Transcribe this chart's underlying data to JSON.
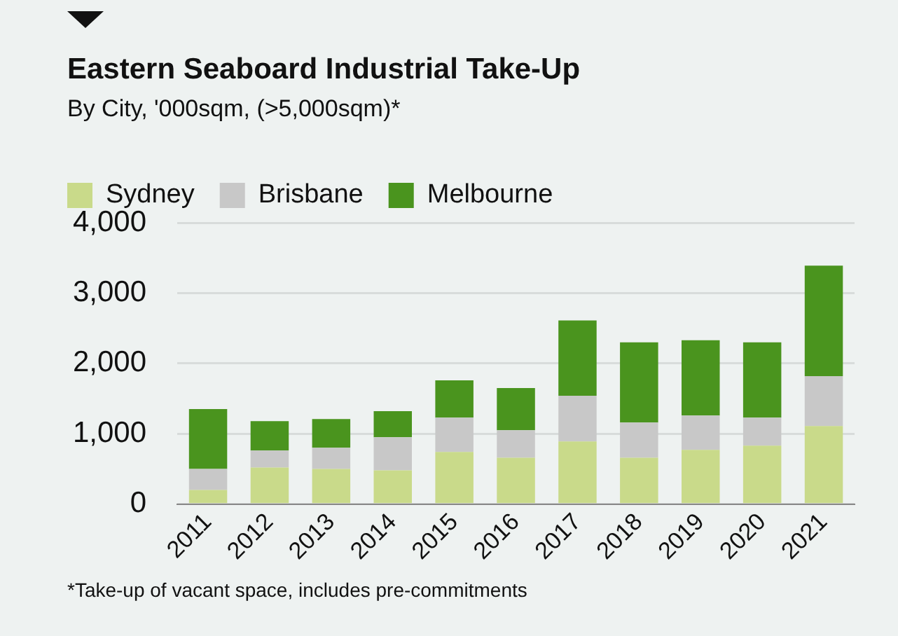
{
  "chart_data": {
    "type": "bar",
    "title": "Eastern Seaboard Industrial Take-Up",
    "subtitle": "By City, '000sqm, (>5,000sqm)*",
    "categories": [
      "2011",
      "2012",
      "2013",
      "2014",
      "2015",
      "2016",
      "2017",
      "2018",
      "2019",
      "2020",
      "2021"
    ],
    "series": [
      {
        "name": "Sydney",
        "color": "#c9da8a",
        "values": [
          200,
          520,
          500,
          480,
          740,
          660,
          890,
          660,
          770,
          830,
          1110
        ]
      },
      {
        "name": "Brisbane",
        "color": "#c8c8c8",
        "values": [
          300,
          240,
          300,
          470,
          490,
          390,
          650,
          500,
          490,
          400,
          710
        ]
      },
      {
        "name": "Melbourne",
        "color": "#4a941e",
        "values": [
          850,
          420,
          410,
          370,
          530,
          600,
          1070,
          1140,
          1070,
          1070,
          1570
        ]
      }
    ],
    "stacked": true,
    "ylim": [
      0,
      4000
    ],
    "yticks": [
      0,
      {
        "value": 1000,
        "label": "1,000"
      },
      {
        "value": 2000,
        "label": "2,000"
      },
      {
        "value": 3000,
        "label": "3,000"
      },
      {
        "value": 4000,
        "label": "4,000"
      }
    ],
    "grid": "y",
    "legend": "top left",
    "annotations": [
      "*Take-up of vacant space, includes pre-commitments"
    ]
  }
}
